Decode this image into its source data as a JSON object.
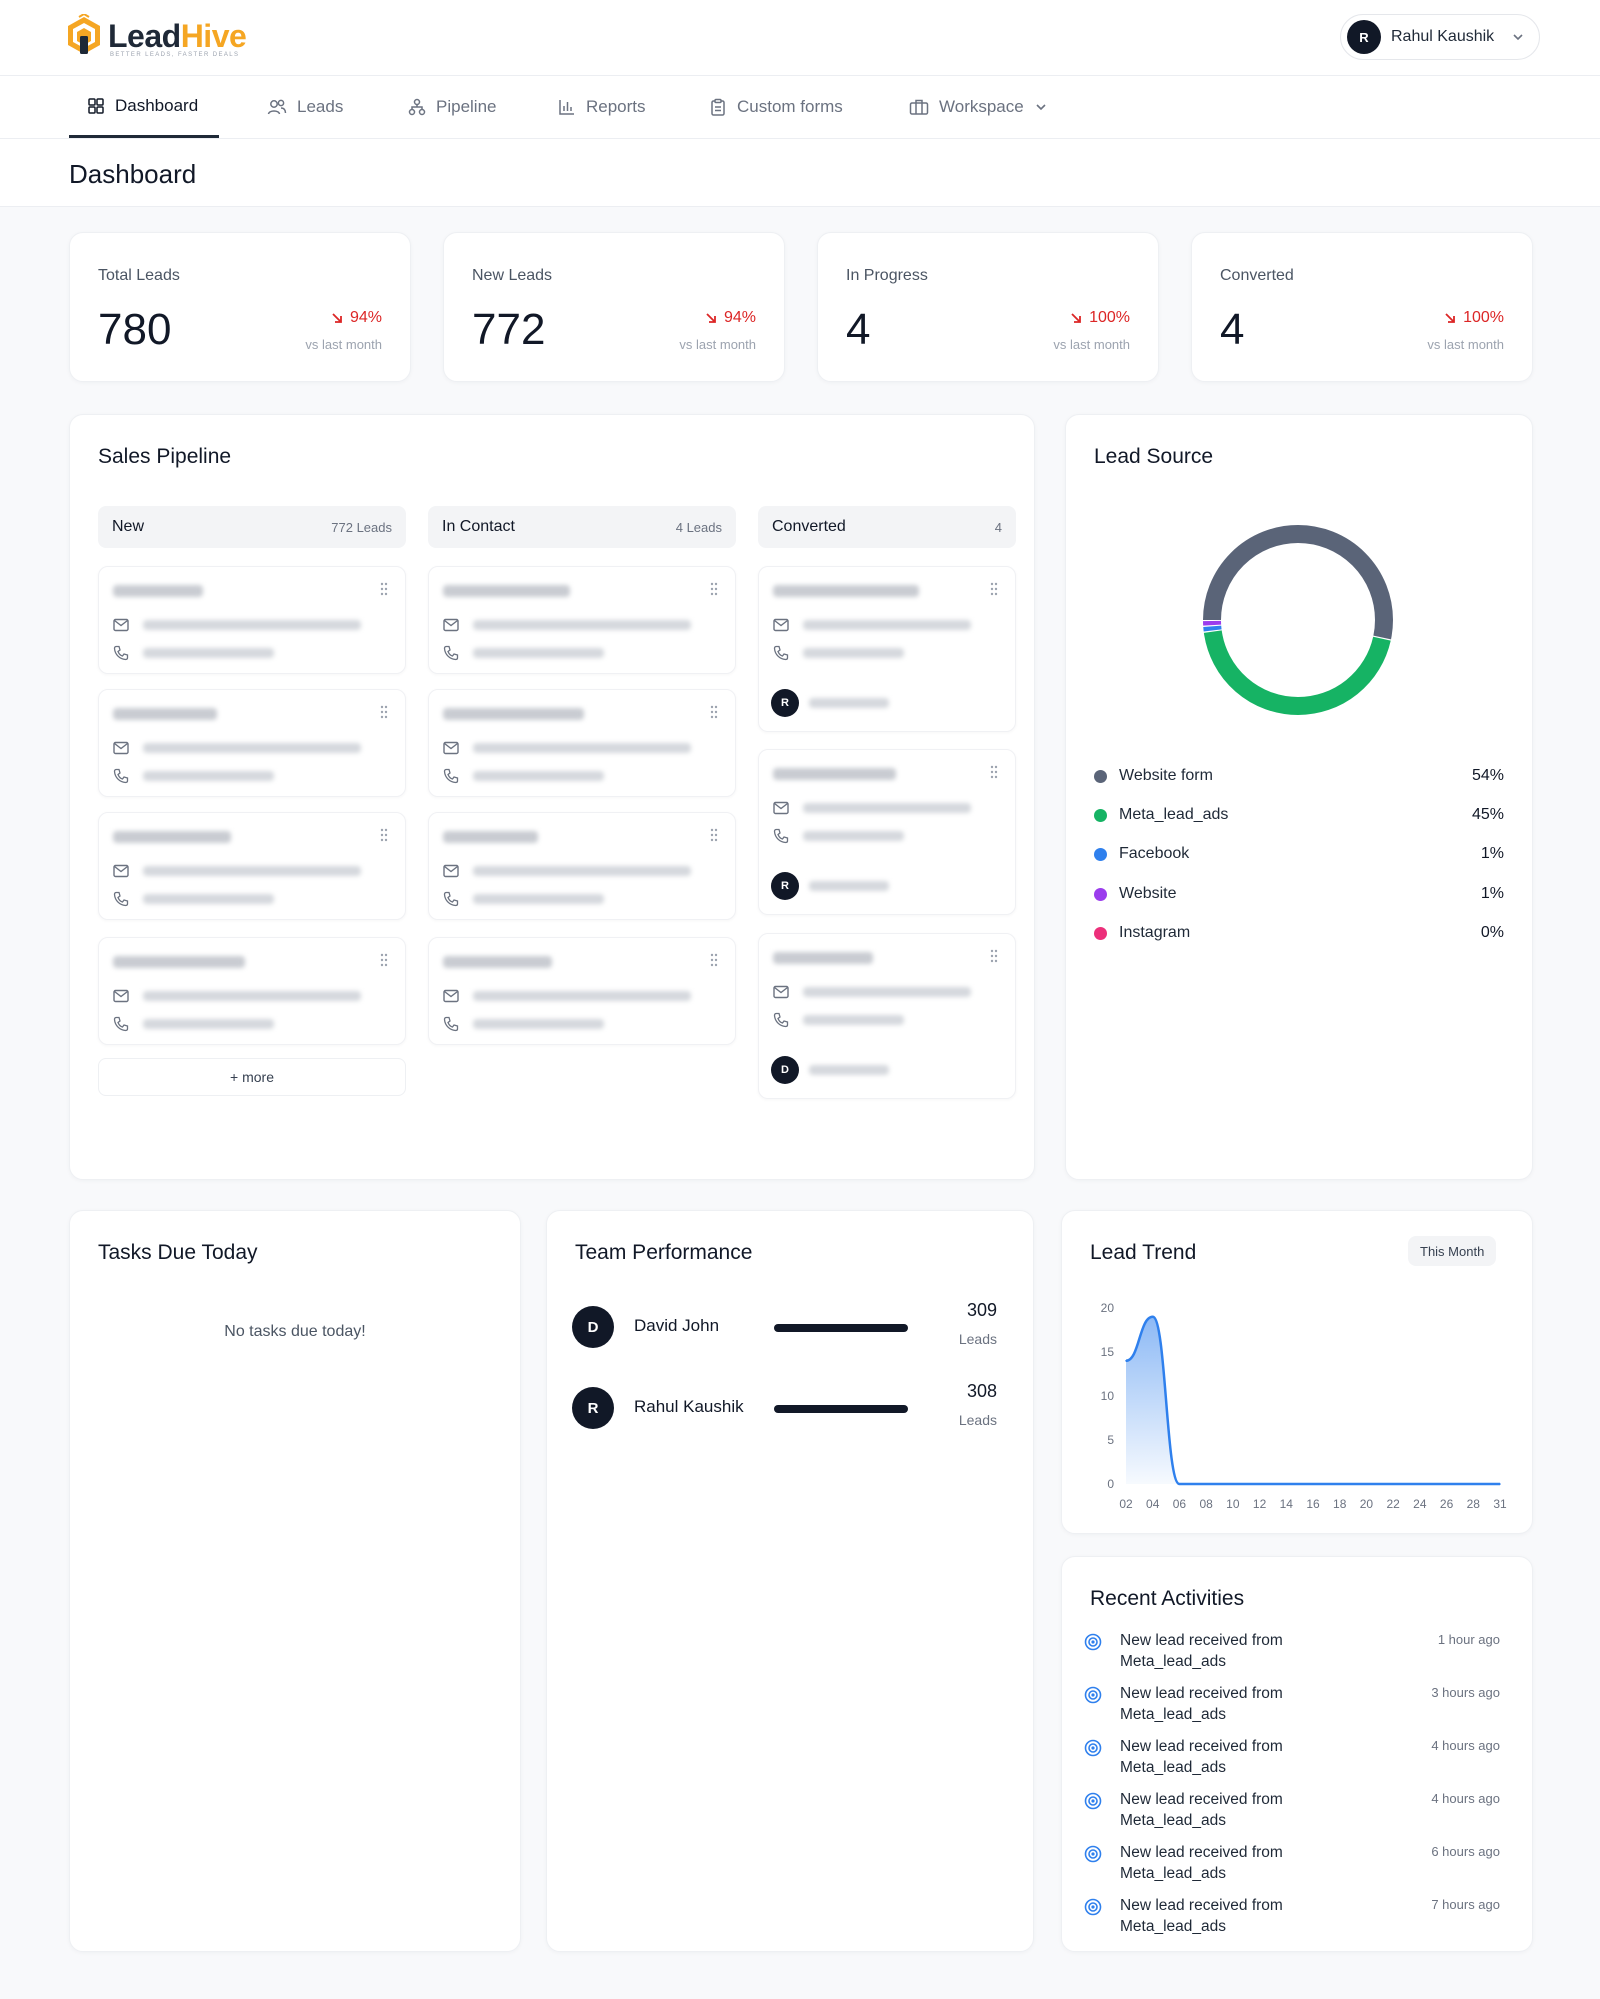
{
  "brand": {
    "name_part1": "Lead",
    "name_part2": "Hive",
    "tagline": "BETTER LEADS, FASTER DEALS",
    "accent": "#f5a623"
  },
  "user": {
    "initial": "R",
    "name": "Rahul Kaushik"
  },
  "nav": {
    "items": [
      {
        "label": "Dashboard",
        "icon": "dashboard-icon",
        "active": true
      },
      {
        "label": "Leads",
        "icon": "users-icon"
      },
      {
        "label": "Pipeline",
        "icon": "pipeline-icon"
      },
      {
        "label": "Reports",
        "icon": "bar-chart-icon"
      },
      {
        "label": "Custom forms",
        "icon": "clipboard-icon"
      },
      {
        "label": "Workspace",
        "icon": "briefcase-icon",
        "has_dropdown": true
      }
    ]
  },
  "page": {
    "title": "Dashboard"
  },
  "stats": [
    {
      "label": "Total Leads",
      "value": "780",
      "delta": "94%",
      "trend": "down",
      "sub": "vs last month"
    },
    {
      "label": "New Leads",
      "value": "772",
      "delta": "94%",
      "trend": "down",
      "sub": "vs last month"
    },
    {
      "label": "In Progress",
      "value": "4",
      "delta": "100%",
      "trend": "down",
      "sub": "vs last month"
    },
    {
      "label": "Converted",
      "value": "4",
      "delta": "100%",
      "trend": "down",
      "sub": "vs last month"
    }
  ],
  "pipeline": {
    "title": "Sales Pipeline",
    "columns": [
      {
        "name": "New",
        "count": "772 Leads"
      },
      {
        "name": "In Contact",
        "count": "4 Leads"
      },
      {
        "name": "Converted",
        "count": "4"
      }
    ],
    "more_label": "+ more",
    "converted_avatars": [
      "R",
      "R",
      "D"
    ]
  },
  "lead_source": {
    "title": "Lead Source",
    "sources": [
      {
        "name": "Website form",
        "pct": "54%",
        "value": 54,
        "color": "#5a6478"
      },
      {
        "name": "Meta_lead_ads",
        "pct": "45%",
        "value": 45,
        "color": "#16b364"
      },
      {
        "name": "Facebook",
        "pct": "1%",
        "value": 1,
        "color": "#2f80ed"
      },
      {
        "name": "Website",
        "pct": "1%",
        "value": 1,
        "color": "#9b3ded"
      },
      {
        "name": "Instagram",
        "pct": "0%",
        "value": 0,
        "color": "#ec2f7a"
      }
    ]
  },
  "tasks": {
    "title": "Tasks Due Today",
    "empty": "No tasks due today!"
  },
  "team": {
    "title": "Team Performance",
    "members": [
      {
        "initial": "D",
        "name": "David John",
        "count": "309",
        "unit": "Leads"
      },
      {
        "initial": "R",
        "name": "Rahul Kaushik",
        "count": "308",
        "unit": "Leads"
      }
    ]
  },
  "trend": {
    "title": "Lead Trend",
    "period": "This Month"
  },
  "chart_data": {
    "type": "area",
    "title": "Lead Trend",
    "x": [
      "02",
      "04",
      "06",
      "08",
      "10",
      "12",
      "14",
      "16",
      "18",
      "20",
      "22",
      "24",
      "26",
      "28",
      "31"
    ],
    "x_ticks": [
      "02",
      "04",
      "06",
      "08",
      "10",
      "12",
      "14",
      "16",
      "18",
      "20",
      "22",
      "24",
      "26",
      "28",
      "31"
    ],
    "y_ticks": [
      "20",
      "15",
      "10",
      "5",
      "0"
    ],
    "ylim": [
      0,
      20
    ],
    "series": [
      {
        "values": [
          14,
          19,
          0,
          0,
          0,
          0,
          0,
          0,
          0,
          0,
          0,
          0,
          0,
          0,
          0
        ],
        "color": "#2f80ed"
      }
    ],
    "grid": false,
    "legend": "none"
  },
  "activities": {
    "title": "Recent Activities",
    "items": [
      {
        "line1": "New lead received from",
        "line2": "Meta_lead_ads",
        "time": "1 hour ago"
      },
      {
        "line1": "New lead received from",
        "line2": "Meta_lead_ads",
        "time": "3 hours ago"
      },
      {
        "line1": "New lead received from",
        "line2": "Meta_lead_ads",
        "time": "4 hours ago"
      },
      {
        "line1": "New lead received from",
        "line2": "Meta_lead_ads",
        "time": "4 hours ago"
      },
      {
        "line1": "New lead received from",
        "line2": "Meta_lead_ads",
        "time": "6 hours ago"
      },
      {
        "line1": "New lead received from",
        "line2": "Meta_lead_ads",
        "time": "7 hours ago"
      }
    ]
  }
}
